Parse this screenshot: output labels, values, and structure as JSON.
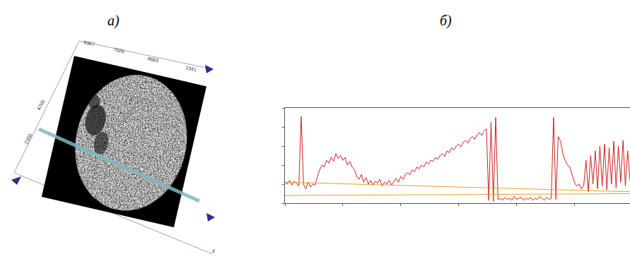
{
  "panel_labels": [
    "а)",
    "б)"
  ],
  "image": {
    "top_ticks": [
      "9367",
      "7026",
      "4683",
      "2341"
    ],
    "left_ticks": [
      "4700",
      "2350"
    ],
    "axis_label": "z"
  },
  "chart_data": {
    "type": "line",
    "xlim": [
      0,
      149
    ],
    "ylim": [
      0,
      100
    ],
    "xticks": [
      0,
      25,
      50,
      75,
      100,
      125
    ],
    "yticks": [
      0,
      20,
      40,
      60,
      80,
      100
    ],
    "tick_labels": false,
    "grid": false,
    "series": [
      {
        "color": "#cc2020",
        "x": [
          0,
          1,
          2,
          3,
          4,
          5,
          6,
          7,
          8,
          9,
          10,
          11,
          12,
          13,
          14,
          15,
          16,
          17,
          18,
          19,
          20,
          21,
          22,
          23,
          24,
          25,
          26,
          27,
          28,
          29,
          30,
          31,
          32,
          33,
          34,
          35,
          36,
          37,
          38,
          39,
          40,
          41,
          42,
          43,
          44,
          45,
          46,
          47,
          48,
          49,
          50,
          51,
          52,
          53,
          54,
          55,
          56,
          57,
          58,
          59,
          60,
          61,
          62,
          63,
          64,
          65,
          66,
          67,
          68,
          69,
          70,
          71,
          72,
          73,
          74,
          75,
          76,
          77,
          78,
          79,
          80,
          81,
          82,
          83,
          84,
          85,
          86,
          87,
          88,
          89,
          90,
          91,
          92,
          93,
          94,
          95,
          96,
          97,
          98,
          99,
          100,
          101,
          102,
          103,
          104,
          105,
          106,
          107,
          108,
          109,
          110,
          111,
          112,
          113,
          114,
          115,
          116,
          117,
          118,
          119,
          120,
          121,
          122,
          123,
          124,
          125,
          126,
          127,
          128,
          129,
          130,
          131,
          132,
          133,
          134,
          135,
          136,
          137,
          138,
          139,
          140,
          141,
          142,
          143,
          144,
          145,
          146,
          147,
          148,
          149
        ],
        "values": [
          22,
          20,
          24,
          19,
          23,
          21,
          18,
          91,
          20,
          15,
          22,
          17,
          20,
          19,
          28,
          35,
          40,
          38,
          45,
          42,
          48,
          44,
          52,
          47,
          50,
          45,
          48,
          40,
          44,
          38,
          35,
          28,
          25,
          30,
          22,
          27,
          20,
          24,
          19,
          23,
          21,
          25,
          18,
          22,
          20,
          24,
          19,
          23,
          26,
          22,
          28,
          25,
          30,
          32,
          30,
          35,
          33,
          38,
          36,
          40,
          38,
          43,
          41,
          45,
          44,
          48,
          46,
          50,
          52,
          49,
          55,
          53,
          58,
          56,
          60,
          62,
          59,
          64,
          66,
          63,
          68,
          70,
          67,
          72,
          74,
          71,
          76,
          78,
          3,
          85,
          2,
          90,
          4,
          5,
          3,
          6,
          4,
          5,
          3,
          7,
          4,
          5,
          6,
          3,
          5,
          4,
          6,
          3,
          5,
          4,
          7,
          5,
          3,
          6,
          4,
          5,
          90,
          4,
          70,
          65,
          52,
          45,
          40,
          38,
          30,
          22,
          18,
          20,
          15,
          18,
          45,
          12,
          50,
          20,
          55,
          15,
          60,
          18,
          62,
          14,
          58,
          20,
          65,
          16,
          60,
          22,
          66,
          18,
          55,
          24
        ]
      },
      {
        "color": "#e8a020",
        "x": [
          0,
          149
        ],
        "values": [
          22,
          12
        ]
      },
      {
        "color": "#e8a020",
        "x": [
          0,
          149
        ],
        "values": [
          8,
          10
        ]
      }
    ]
  }
}
